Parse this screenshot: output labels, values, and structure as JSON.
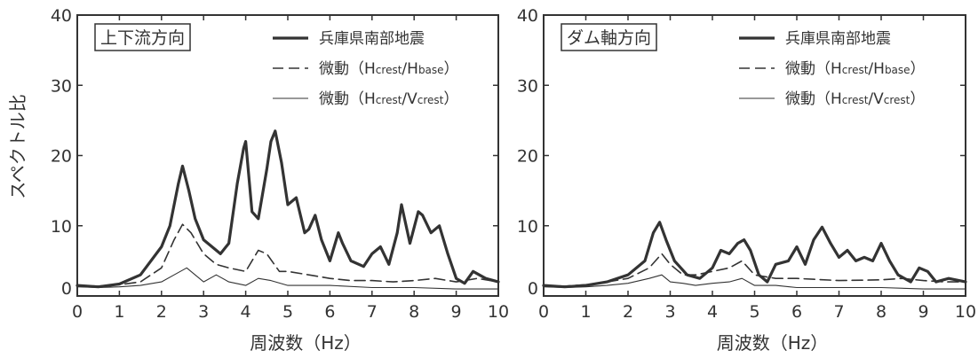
{
  "chart_data": [
    {
      "type": "line",
      "title": "上下流方向",
      "xlabel": "周波数（Hz）",
      "ylabel": "スペクトル比",
      "xlim": [
        0,
        10
      ],
      "ylim": [
        0,
        40
      ],
      "xticks": [
        "0",
        "1",
        "2",
        "3",
        "4",
        "5",
        "6",
        "7",
        "8",
        "9",
        "10"
      ],
      "yticks": [
        "0",
        "10",
        "20",
        "30",
        "40"
      ],
      "grid": false,
      "legend_position": "top-right",
      "series": [
        {
          "name": "兵庫県南部地震",
          "style": "thick-solid",
          "x": [
            0,
            0.5,
            1.0,
            1.5,
            2.0,
            2.2,
            2.4,
            2.5,
            2.65,
            2.8,
            3.0,
            3.2,
            3.4,
            3.6,
            3.8,
            3.95,
            4.0,
            4.15,
            4.3,
            4.5,
            4.6,
            4.7,
            4.85,
            5.0,
            5.2,
            5.4,
            5.5,
            5.65,
            5.8,
            6.0,
            6.2,
            6.3,
            6.5,
            6.8,
            7.0,
            7.2,
            7.4,
            7.6,
            7.7,
            7.9,
            8.1,
            8.2,
            8.4,
            8.6,
            8.8,
            9.0,
            9.2,
            9.4,
            9.7,
            10.0
          ],
          "values": [
            1.5,
            1.3,
            1.7,
            3.0,
            7.0,
            10.0,
            16.0,
            18.5,
            15.0,
            11.0,
            8.0,
            7.0,
            6.0,
            7.5,
            16.0,
            21.0,
            22.0,
            12.0,
            11.0,
            18.0,
            22.0,
            23.5,
            19.0,
            13.0,
            14.0,
            9.0,
            9.5,
            11.5,
            8.0,
            5.0,
            9.0,
            7.5,
            5.0,
            4.2,
            6.0,
            7.0,
            4.5,
            9.0,
            13.0,
            7.5,
            12.0,
            11.5,
            9.0,
            10.0,
            6.0,
            2.5,
            1.8,
            3.5,
            2.5,
            2.0
          ]
        },
        {
          "name": "微動（Hcrest/Hbase）",
          "style": "dashed",
          "x": [
            0,
            0.5,
            1.0,
            1.5,
            2.0,
            2.3,
            2.5,
            2.7,
            3.0,
            3.3,
            3.6,
            4.0,
            4.3,
            4.5,
            4.8,
            5.0,
            5.5,
            6.0,
            6.5,
            7.0,
            7.5,
            8.0,
            8.5,
            9.0,
            9.5,
            10.0
          ],
          "values": [
            1.5,
            1.4,
            1.6,
            2.0,
            4.0,
            8.0,
            10.2,
            9.0,
            6.0,
            4.5,
            4.0,
            3.5,
            6.5,
            6.0,
            3.5,
            3.5,
            3.0,
            2.5,
            2.2,
            2.2,
            2.0,
            2.2,
            2.5,
            2.0,
            2.5,
            2.0
          ]
        },
        {
          "name": "微動（Hcrest/Vcrest）",
          "style": "thin-solid",
          "x": [
            0,
            0.5,
            1.0,
            1.5,
            2.0,
            2.3,
            2.6,
            2.8,
            3.0,
            3.3,
            3.6,
            4.0,
            4.3,
            4.6,
            5.0,
            5.5,
            6.0,
            7.0,
            8.0,
            9.0,
            9.5,
            10.0
          ],
          "values": [
            1.3,
            1.2,
            1.3,
            1.5,
            2.0,
            3.0,
            4.0,
            3.0,
            2.0,
            3.0,
            2.0,
            1.5,
            2.5,
            2.2,
            1.5,
            1.5,
            1.5,
            1.2,
            1.2,
            1.0,
            1.0,
            1.0
          ]
        }
      ]
    },
    {
      "type": "line",
      "title": "ダム軸方向",
      "xlabel": "周波数（Hz）",
      "ylabel": "",
      "xlim": [
        0,
        10
      ],
      "ylim": [
        0,
        40
      ],
      "xticks": [
        "0",
        "1",
        "2",
        "3",
        "4",
        "5",
        "6",
        "7",
        "8",
        "9",
        "10"
      ],
      "yticks": [
        "0",
        "10",
        "20",
        "30",
        "40"
      ],
      "grid": false,
      "legend_position": "top-right",
      "series": [
        {
          "name": "兵庫県南部地震",
          "style": "thick-solid",
          "x": [
            0,
            0.5,
            1.0,
            1.5,
            2.0,
            2.4,
            2.6,
            2.75,
            2.9,
            3.1,
            3.4,
            3.7,
            4.0,
            4.2,
            4.4,
            4.6,
            4.75,
            4.9,
            5.1,
            5.3,
            5.5,
            5.8,
            6.0,
            6.2,
            6.4,
            6.6,
            6.8,
            7.0,
            7.2,
            7.4,
            7.6,
            7.8,
            8.0,
            8.2,
            8.4,
            8.7,
            8.9,
            9.1,
            9.3,
            9.6,
            10.0
          ],
          "values": [
            1.5,
            1.3,
            1.5,
            2.0,
            3.0,
            5.0,
            9.0,
            10.5,
            8.0,
            5.0,
            3.0,
            2.5,
            4.0,
            6.5,
            6.0,
            7.5,
            8.0,
            6.5,
            3.0,
            2.0,
            4.5,
            5.0,
            7.0,
            4.5,
            8.0,
            9.8,
            7.5,
            5.5,
            6.5,
            5.0,
            5.5,
            5.0,
            7.5,
            5.0,
            3.0,
            2.0,
            4.0,
            3.5,
            2.0,
            2.5,
            2.0
          ]
        },
        {
          "name": "微動（Hcrest/Hbase）",
          "style": "dashed",
          "x": [
            0,
            0.5,
            1.0,
            1.5,
            2.0,
            2.5,
            2.8,
            3.0,
            3.3,
            3.6,
            4.0,
            4.4,
            4.7,
            5.0,
            5.5,
            6.0,
            7.0,
            8.0,
            8.5,
            9.0,
            9.5,
            10.0
          ],
          "values": [
            1.5,
            1.4,
            1.6,
            2.0,
            2.5,
            4.0,
            6.0,
            4.5,
            3.0,
            3.0,
            3.5,
            4.0,
            5.0,
            3.0,
            2.5,
            2.5,
            2.2,
            2.3,
            2.5,
            2.2,
            2.0,
            2.0
          ]
        },
        {
          "name": "微動（Hcrest/Vcrest）",
          "style": "thin-solid",
          "x": [
            0,
            0.5,
            1.0,
            1.5,
            2.0,
            2.5,
            2.8,
            3.0,
            3.3,
            3.6,
            4.0,
            4.4,
            4.7,
            5.0,
            5.5,
            6.0,
            7.0,
            8.0,
            9.0,
            9.5,
            10.0
          ],
          "values": [
            1.3,
            1.2,
            1.3,
            1.5,
            1.8,
            2.5,
            3.0,
            2.0,
            1.8,
            1.5,
            1.8,
            2.0,
            2.5,
            1.5,
            1.5,
            1.2,
            1.2,
            1.2,
            1.0,
            1.0,
            1.0
          ]
        }
      ]
    }
  ],
  "panels": [
    {
      "title": "上下流方向",
      "ylabel": "スペクトル比",
      "xlabel": "周波数（Hz）",
      "legend": [
        {
          "prefix": "兵庫県南部地震",
          "h_main": "",
          "h_sub1": "",
          "sep": "",
          "h_main2": "",
          "h_sub2": "",
          "close": ""
        },
        {
          "prefix": "微動（",
          "h_main": "H",
          "h_sub1": "crest",
          "sep": "/",
          "h_main2": "H",
          "h_sub2": "base",
          "close": "）"
        },
        {
          "prefix": "微動（",
          "h_main": "H",
          "h_sub1": "crest",
          "sep": "/",
          "h_main2": "V",
          "h_sub2": "crest",
          "close": "）"
        }
      ]
    },
    {
      "title": "ダム軸方向",
      "ylabel": "",
      "xlabel": "周波数（Hz）",
      "legend": [
        {
          "prefix": "兵庫県南部地震",
          "h_main": "",
          "h_sub1": "",
          "sep": "",
          "h_main2": "",
          "h_sub2": "",
          "close": ""
        },
        {
          "prefix": "微動（",
          "h_main": "H",
          "h_sub1": "crest",
          "sep": "/",
          "h_main2": "H",
          "h_sub2": "base",
          "close": "）"
        },
        {
          "prefix": "微動（",
          "h_main": "H",
          "h_sub1": "crest",
          "sep": "/",
          "h_main2": "V",
          "h_sub2": "crest",
          "close": "）"
        }
      ]
    }
  ],
  "colors": {
    "line": "#333333",
    "axis": "#333333",
    "background": "#ffffff"
  }
}
